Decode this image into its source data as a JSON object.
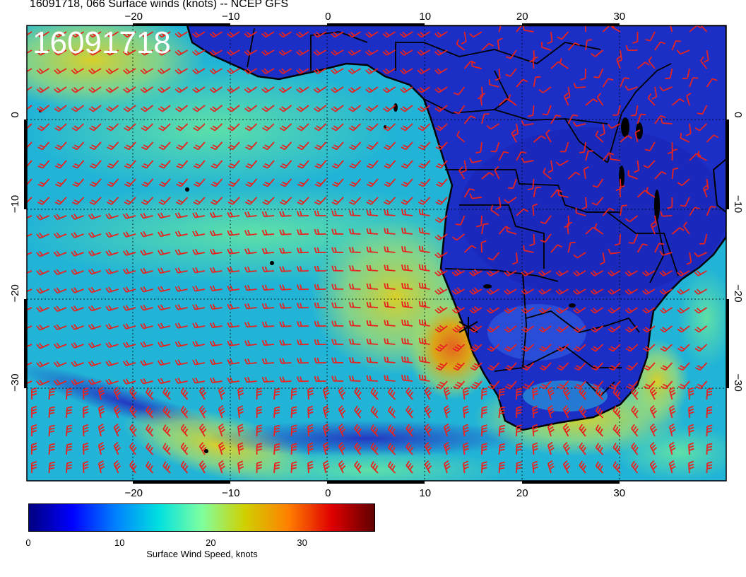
{
  "title": "16091718, 066 Surface winds (knots) -- NCEP GFS",
  "stamp": "16091718",
  "map": {
    "lon_range": [
      -31,
      41
    ],
    "lat_range": [
      -41,
      10
    ],
    "lon_ticks": [
      "−20",
      "−10",
      "0",
      "10",
      "20",
      "30"
    ],
    "lon_tick_values": [
      -20,
      -10,
      0,
      10,
      20,
      30
    ],
    "lat_ticks": [
      "0",
      "−10",
      "−20",
      "−30"
    ],
    "lat_tick_values": [
      0,
      -10,
      -20,
      -30
    ],
    "barb_color": "#e8231f",
    "land_color": "#1c2cc0",
    "ocean_color": "#1fb6d6"
  },
  "colorbar": {
    "label": "Surface Wind Speed, knots",
    "ticks": [
      "0",
      "10",
      "20",
      "30"
    ],
    "tick_values": [
      0,
      10,
      20,
      30
    ],
    "range": [
      0,
      38
    ],
    "colors": [
      "#00007f",
      "#0000ff",
      "#0080ff",
      "#00e0e0",
      "#7fffa0",
      "#d0d000",
      "#ff8000",
      "#e00000",
      "#600000"
    ]
  }
}
